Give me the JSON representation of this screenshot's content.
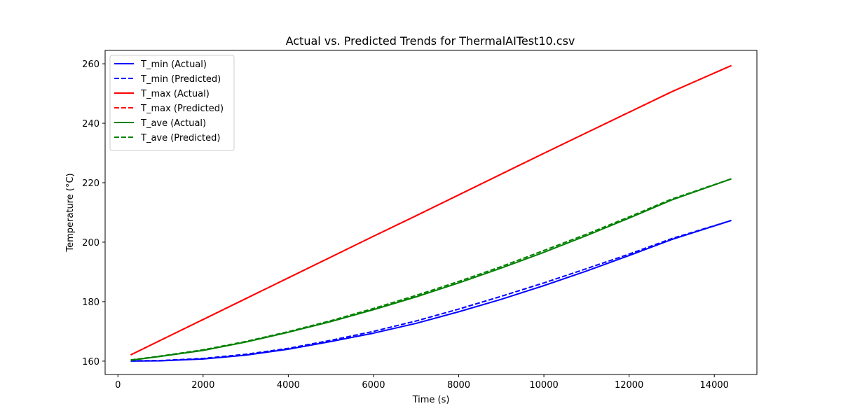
{
  "chart_data": {
    "type": "line",
    "title": "Actual vs. Predicted Trends for ThermalAITest10.csv",
    "xlabel": "Time (s)",
    "ylabel": "Temperature (°C)",
    "xlim": [
      -300,
      15000
    ],
    "ylim": [
      155.5,
      264.5
    ],
    "xticks": [
      0,
      2000,
      4000,
      6000,
      8000,
      10000,
      12000,
      14000
    ],
    "yticks": [
      160,
      180,
      200,
      220,
      240,
      260
    ],
    "grid": false,
    "legend_position": "top-left",
    "x": [
      300,
      1000,
      2000,
      3000,
      4000,
      5000,
      6000,
      7000,
      8000,
      9000,
      10000,
      11000,
      12000,
      13000,
      14400
    ],
    "series": [
      {
        "name": "T_min (Actual)",
        "color": "#0000ff",
        "dash": "solid",
        "values": [
          160.0,
          160.1,
          160.7,
          162.0,
          164.0,
          166.6,
          169.4,
          172.7,
          176.6,
          180.8,
          185.4,
          190.3,
          195.5,
          200.9,
          207.3
        ]
      },
      {
        "name": "T_min (Predicted)",
        "color": "#0000ff",
        "dash": "dashed",
        "values": [
          160.1,
          160.2,
          160.9,
          162.3,
          164.3,
          167.0,
          170.0,
          173.5,
          177.5,
          181.8,
          186.3,
          191.1,
          196.0,
          201.2,
          207.3
        ]
      },
      {
        "name": "T_max (Actual)",
        "color": "#ff0000",
        "dash": "solid",
        "values": [
          162.1,
          167.0,
          174.0,
          181.0,
          188.0,
          195.0,
          202.0,
          208.9,
          215.9,
          222.9,
          229.9,
          236.8,
          243.7,
          250.6,
          259.4
        ]
      },
      {
        "name": "T_max (Predicted)",
        "color": "#ff0000",
        "dash": "dashed",
        "values": [
          162.1,
          167.0,
          174.0,
          181.0,
          188.0,
          195.0,
          202.0,
          208.9,
          215.9,
          222.9,
          229.9,
          236.8,
          243.7,
          250.6,
          259.4
        ]
      },
      {
        "name": "T_ave (Actual)",
        "color": "#008000",
        "dash": "solid",
        "values": [
          160.3,
          161.6,
          163.6,
          166.4,
          169.7,
          173.3,
          177.3,
          181.6,
          186.3,
          191.3,
          196.6,
          202.2,
          208.1,
          214.2,
          221.3
        ]
      },
      {
        "name": "T_ave (Predicted)",
        "color": "#008000",
        "dash": "dashed",
        "values": [
          160.4,
          161.7,
          163.8,
          166.6,
          169.9,
          173.6,
          177.7,
          182.1,
          186.8,
          191.8,
          197.2,
          202.7,
          208.5,
          214.5,
          221.3
        ]
      }
    ]
  }
}
